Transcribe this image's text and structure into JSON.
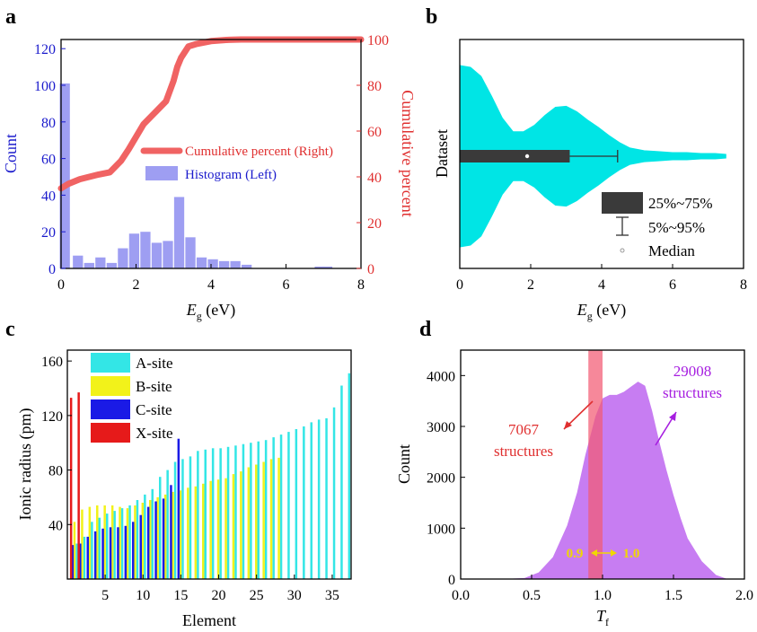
{
  "figure": {
    "panel_labels": [
      "a",
      "b",
      "c",
      "d"
    ]
  },
  "colors": {
    "blue_axis": "#1a1acc",
    "red_axis": "#e03030",
    "hist_fill": "#9e9ef2",
    "cumulative_line": "#f06363",
    "violin_fill": "#00e5e5",
    "box_fill": "#3a3a3a",
    "a_site": "#33e6e6",
    "b_site": "#f2f21a",
    "c_site": "#1a1ae6",
    "x_site": "#e61a1a",
    "density_fill": "#c77df2",
    "band_fill": "#f25a73",
    "arrow_yellow": "#f0d800"
  },
  "chart_data": [
    {
      "panel": "a",
      "type": "bar",
      "title": "",
      "xlabel_main": "E",
      "xlabel_sub": "g",
      "xlabel_unit": " (eV)",
      "ylabel_left": "Count",
      "ylabel_right": "Cumulative percent",
      "xlim": [
        0,
        8
      ],
      "ylim_left": [
        0,
        125
      ],
      "ylim_right": [
        0,
        100
      ],
      "x_ticks": [
        "0",
        "2",
        "4",
        "6",
        "8"
      ],
      "y_left_ticks": [
        "0",
        "20",
        "40",
        "60",
        "80",
        "100",
        "120"
      ],
      "y_right_ticks": [
        "0",
        "20",
        "40",
        "60",
        "80",
        "100"
      ],
      "bin_width": 0.27,
      "bin_centers": [
        0.1,
        0.45,
        0.75,
        1.05,
        1.35,
        1.65,
        1.95,
        2.25,
        2.55,
        2.85,
        3.15,
        3.45,
        3.75,
        4.05,
        4.35,
        4.65,
        4.95,
        5.25,
        6.9,
        7.1
      ],
      "series": [
        {
          "name": "Histogram (Left)",
          "axis": "left",
          "values": [
            101,
            7,
            3,
            6,
            3,
            11,
            19,
            20,
            14,
            15,
            39,
            17,
            6,
            5,
            4,
            4,
            2,
            0,
            1,
            1
          ]
        },
        {
          "name": "Cumulative percent (Right)",
          "axis": "right",
          "x": [
            0,
            0.2,
            0.5,
            1.0,
            1.3,
            1.6,
            1.8,
            2.2,
            2.5,
            2.8,
            3.0,
            3.1,
            3.2,
            3.4,
            3.6,
            4.0,
            4.4,
            4.8,
            5.5,
            6.5,
            8.0
          ],
          "values": [
            35,
            37,
            39,
            41,
            42,
            47,
            52,
            63,
            68,
            73,
            82,
            88,
            92,
            97,
            98,
            99.3,
            99.8,
            100,
            100,
            100,
            100
          ]
        }
      ],
      "legend_position": "center-right"
    },
    {
      "panel": "b",
      "type": "violin",
      "xlabel_main": "E",
      "xlabel_sub": "g",
      "xlabel_unit": " (eV)",
      "ylabel": "Dataset",
      "xlim": [
        0,
        8
      ],
      "x_ticks": [
        "0",
        "2",
        "4",
        "6",
        "8"
      ],
      "density": {
        "x": [
          0,
          0.3,
          0.6,
          0.9,
          1.2,
          1.5,
          1.8,
          2.1,
          2.4,
          2.7,
          3.0,
          3.3,
          3.6,
          3.9,
          4.2,
          4.5,
          4.8,
          5.2,
          5.6,
          6.0,
          6.4,
          6.8,
          7.2,
          7.5
        ],
        "half_width_fraction": [
          1.0,
          0.98,
          0.88,
          0.66,
          0.42,
          0.27,
          0.27,
          0.34,
          0.45,
          0.54,
          0.55,
          0.49,
          0.4,
          0.32,
          0.23,
          0.15,
          0.09,
          0.06,
          0.05,
          0.04,
          0.04,
          0.03,
          0.03,
          0.02
        ]
      },
      "box": {
        "q1": 0.0,
        "q3": 3.1,
        "p5": 0.0,
        "p95": 4.45,
        "median": 1.9
      },
      "legend": [
        "25%~75%",
        "5%~95%",
        "Median"
      ],
      "legend_position": "bottom-right"
    },
    {
      "panel": "c",
      "type": "bar",
      "xlabel": "Element",
      "ylabel": "Ionic radius (pm)",
      "xlim": [
        0,
        37.5
      ],
      "ylim": [
        0,
        168
      ],
      "x_ticks": [
        "5",
        "10",
        "15",
        "20",
        "25",
        "30",
        "35"
      ],
      "y_ticks": [
        "40",
        "80",
        "120",
        "160"
      ],
      "series": [
        {
          "name": "A-site",
          "values": [
            26,
            31,
            42,
            45,
            48,
            50,
            52,
            54,
            58,
            62,
            66,
            75,
            80,
            86,
            88,
            90,
            94,
            95,
            96,
            96,
            97,
            98,
            99,
            100,
            101,
            102,
            104,
            106,
            108,
            110,
            112,
            115,
            117,
            118,
            126,
            142,
            151
          ]
        },
        {
          "name": "B-site",
          "values": [
            42,
            51,
            53,
            54,
            54,
            54,
            53,
            52,
            54,
            56,
            58,
            60,
            62,
            64,
            65,
            67,
            68,
            70,
            72,
            73,
            74,
            77,
            79,
            82,
            84,
            86,
            88,
            89
          ]
        },
        {
          "name": "C-site",
          "values": [
            25,
            26,
            31,
            35,
            37,
            38,
            38,
            39,
            42,
            47,
            53,
            57,
            59,
            69,
            103
          ]
        },
        {
          "name": "X-site",
          "values": [
            133,
            137
          ]
        }
      ],
      "legend_position": "top-left"
    },
    {
      "panel": "d",
      "type": "area",
      "xlabel_main": "T",
      "xlabel_sub": "f",
      "ylabel": "Count",
      "xlim": [
        0.0,
        2.0
      ],
      "ylim": [
        0,
        4500
      ],
      "x_ticks": [
        "0.0",
        "0.5",
        "1.0",
        "1.5",
        "2.0"
      ],
      "y_ticks": [
        "0",
        "1000",
        "2000",
        "3000",
        "4000"
      ],
      "x": [
        0.3,
        0.45,
        0.55,
        0.65,
        0.75,
        0.82,
        0.88,
        0.95,
        1.0,
        1.05,
        1.1,
        1.15,
        1.2,
        1.25,
        1.3,
        1.35,
        1.4,
        1.45,
        1.5,
        1.55,
        1.6,
        1.7,
        1.8,
        1.88
      ],
      "values": [
        0,
        20,
        130,
        430,
        1050,
        1700,
        2450,
        3200,
        3550,
        3620,
        3620,
        3680,
        3780,
        3880,
        3800,
        3300,
        2700,
        2150,
        1650,
        1200,
        800,
        350,
        80,
        0
      ],
      "band": {
        "x_from": 0.9,
        "x_to": 1.0
      },
      "annotations": {
        "left_count": "7067",
        "left_label": "structures",
        "right_count": "29008",
        "right_label": "structures",
        "band_left": "0.9",
        "band_right": "1.0"
      }
    }
  ]
}
